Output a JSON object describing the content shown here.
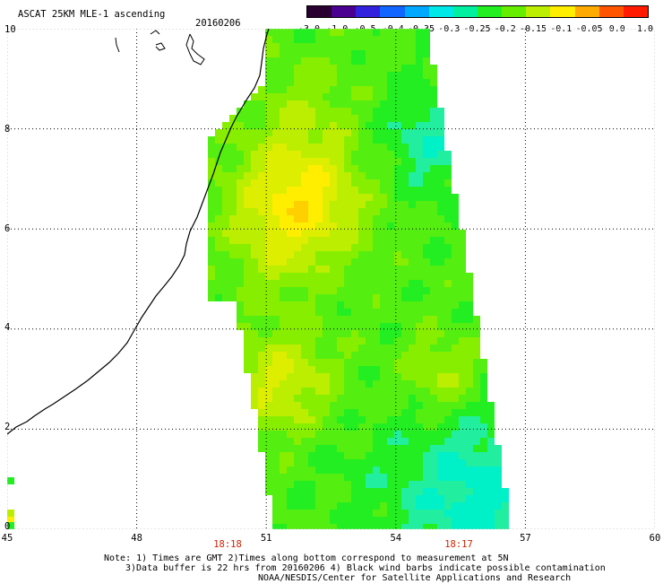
{
  "header": {
    "title": "ASCAT 25KM MLE-1 ascending",
    "date": "20160206"
  },
  "colorbar": {
    "labels": [
      "-3.0",
      "-1.0",
      "-0.5",
      "-0.4",
      "-0.35",
      "-0.3",
      "-0.25",
      "-0.2",
      "-0.15",
      "-0.1",
      "-0.05",
      "0.0",
      "1.0"
    ],
    "colors": [
      "#2a0030",
      "#4a0090",
      "#3322dd",
      "#1166ff",
      "#00a8ff",
      "#00e8e8",
      "#00f0a0",
      "#22ee22",
      "#66ee00",
      "#bbee00",
      "#ffee00",
      "#ffaa00",
      "#ff5500",
      "#ff1a00"
    ]
  },
  "axes": {
    "x_labels": [
      "45",
      "48",
      "51",
      "54",
      "57",
      "60"
    ],
    "y_labels": [
      "10",
      "8",
      "6",
      "4",
      "2",
      "0"
    ],
    "x_range": [
      45,
      60
    ],
    "y_range": [
      0,
      10
    ]
  },
  "time_labels": [
    "18:18",
    "18:17"
  ],
  "notes": [
    "Note: 1) Times are GMT 2)Times along bottom correspond to measurement at 5N",
    "3)Data buffer is 22 hrs from 20160206 4) Black wind barbs indicate possible contamination",
    "NOAA/NESDIS/Center for Satellite Applications and Research"
  ]
}
